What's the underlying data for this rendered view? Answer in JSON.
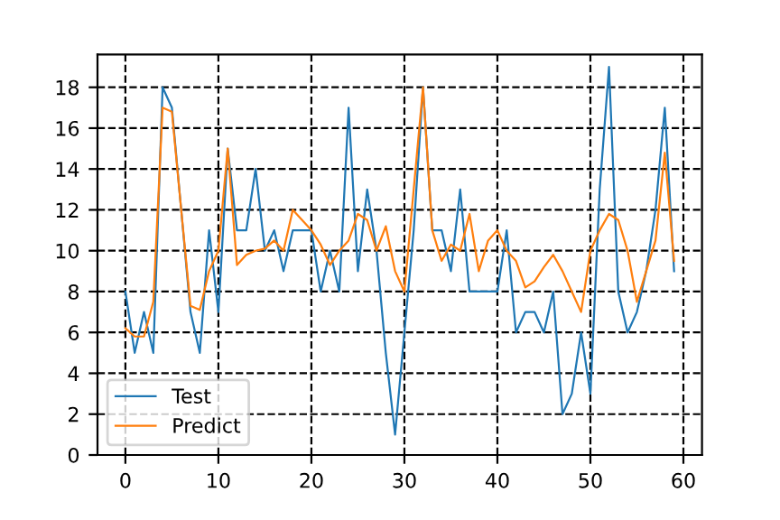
{
  "chart_data": {
    "type": "line",
    "x": [
      0,
      1,
      2,
      3,
      4,
      5,
      6,
      7,
      8,
      9,
      10,
      11,
      12,
      13,
      14,
      15,
      16,
      17,
      18,
      19,
      20,
      21,
      22,
      23,
      24,
      25,
      26,
      27,
      28,
      29,
      30,
      31,
      32,
      33,
      34,
      35,
      36,
      37,
      38,
      39,
      40,
      41,
      42,
      43,
      44,
      45,
      46,
      47,
      48,
      49,
      50,
      51,
      52,
      53,
      54,
      55,
      56,
      57,
      58,
      59
    ],
    "series": [
      {
        "name": "Test",
        "color": "#1f77b4",
        "values": [
          8,
          5,
          7,
          5,
          18,
          17,
          12,
          7,
          5,
          11,
          7,
          15,
          11,
          11,
          14,
          10,
          11,
          9,
          11,
          11,
          11,
          8,
          10,
          8,
          17,
          9,
          13,
          10,
          5,
          1,
          6,
          11,
          18,
          11,
          11,
          9,
          13,
          8,
          8,
          8,
          8,
          11,
          6,
          7,
          7,
          6,
          8,
          2,
          3,
          6,
          3,
          13,
          19,
          8,
          6,
          7,
          9,
          12,
          17,
          9
        ]
      },
      {
        "name": "Predict",
        "color": "#ff7f0e",
        "values": [
          6.2,
          5.8,
          5.8,
          7.5,
          17,
          16.8,
          12,
          7.3,
          7.1,
          9,
          10,
          15,
          9.3,
          9.8,
          10,
          10.1,
          10.5,
          10,
          12,
          11.5,
          11,
          10.3,
          9.3,
          10,
          10.5,
          11.8,
          11.5,
          10,
          11.2,
          9,
          8,
          13,
          18,
          11,
          9.5,
          10.3,
          10,
          11.8,
          9,
          10.5,
          11,
          10,
          9.5,
          8.2,
          8.5,
          9.2,
          9.8,
          9,
          8,
          7,
          10,
          11,
          11.8,
          11.5,
          10,
          7.5,
          9,
          10.5,
          14.8,
          9.5
        ]
      }
    ],
    "xlim": [
      -3,
      62
    ],
    "ylim": [
      0,
      19.6
    ],
    "xticks": [
      0,
      10,
      20,
      30,
      40,
      50,
      60
    ],
    "yticks": [
      0,
      2,
      4,
      6,
      8,
      10,
      12,
      14,
      16,
      18
    ],
    "grid": true,
    "legend": "bottom left",
    "line_style": "solid",
    "marker": "none"
  }
}
